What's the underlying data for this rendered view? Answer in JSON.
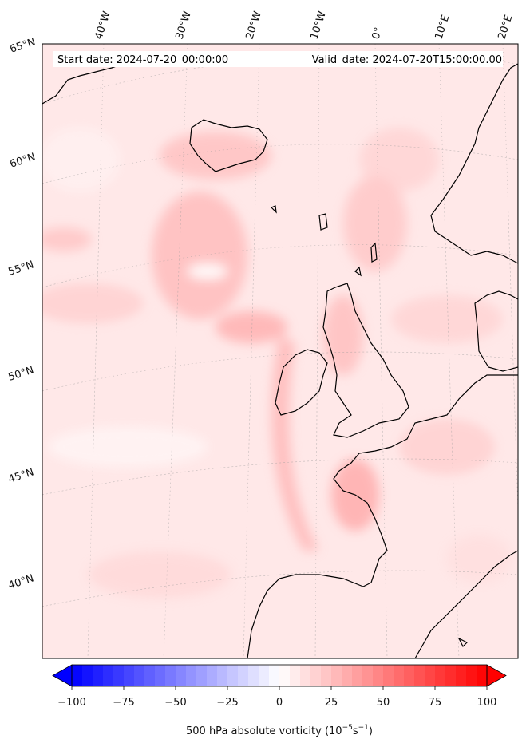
{
  "header": {
    "start_date": "Start date: 2024-07-20_00:00:00",
    "valid_date": "Valid_date: 2024-07-20T15:00:00.00"
  },
  "map": {
    "projection": "polar stereographic / conic",
    "field": "500 hPa absolute vorticity",
    "lon_labels": [
      "40°W",
      "30°W",
      "20°W",
      "10°W",
      "0°",
      "10°E",
      "20°E"
    ],
    "lat_labels": [
      "65°N",
      "60°N",
      "55°N",
      "50°N",
      "45°N",
      "40°N"
    ],
    "gridlines": true,
    "coastline_color": "#000000"
  },
  "colorbar": {
    "ticks": [
      "−100",
      "−75",
      "−50",
      "−25",
      "0",
      "25",
      "50",
      "75",
      "100"
    ],
    "min": -100,
    "max": 100,
    "step": 5,
    "cmap": "bwr",
    "low_color": "#0000ff",
    "mid_color": "#ffffff",
    "high_color": "#ff0000",
    "label": "500 hPa absolute vorticity (10",
    "label_unit_exp1": "−5",
    "label_mid": "s",
    "label_unit_exp2": "−1",
    "label_end": ")"
  }
}
